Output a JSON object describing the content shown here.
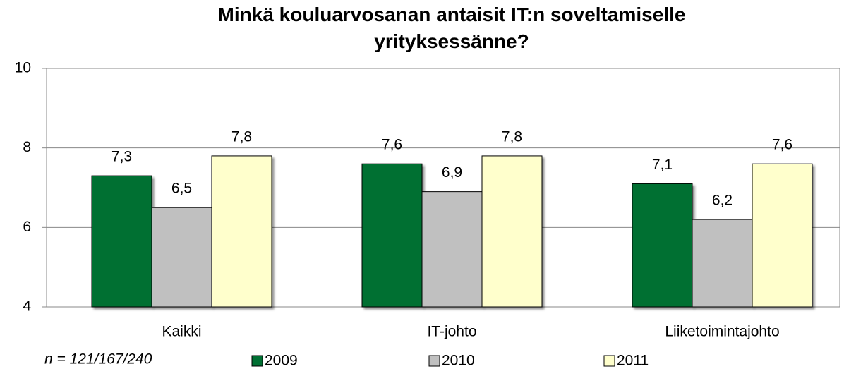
{
  "chart_data": {
    "type": "bar",
    "title": "Minkä kouluarvosanan antaisit IT:n soveltamiselle yrityksessänne?",
    "annotation": "n = 121/167/240",
    "categories": [
      "Kaikki",
      "IT-johto",
      "Liiketoimintajohto"
    ],
    "series": [
      {
        "name": "2009",
        "color": "#007033",
        "values": [
          7.3,
          7.6,
          7.1
        ],
        "value_labels": [
          "7,3",
          "7,6",
          "7,1"
        ]
      },
      {
        "name": "2010",
        "color": "#c0c0c0",
        "values": [
          6.5,
          6.9,
          6.2
        ],
        "value_labels": [
          "6,5",
          "6,9",
          "6,2"
        ]
      },
      {
        "name": "2011",
        "color": "#ffffcc",
        "values": [
          7.8,
          7.8,
          7.6
        ],
        "value_labels": [
          "7,8",
          "7,8",
          "7,6"
        ]
      }
    ],
    "ylim": [
      4,
      10
    ],
    "yticks": [
      4,
      6,
      8,
      10
    ],
    "grid": true,
    "legend": "bottom"
  }
}
